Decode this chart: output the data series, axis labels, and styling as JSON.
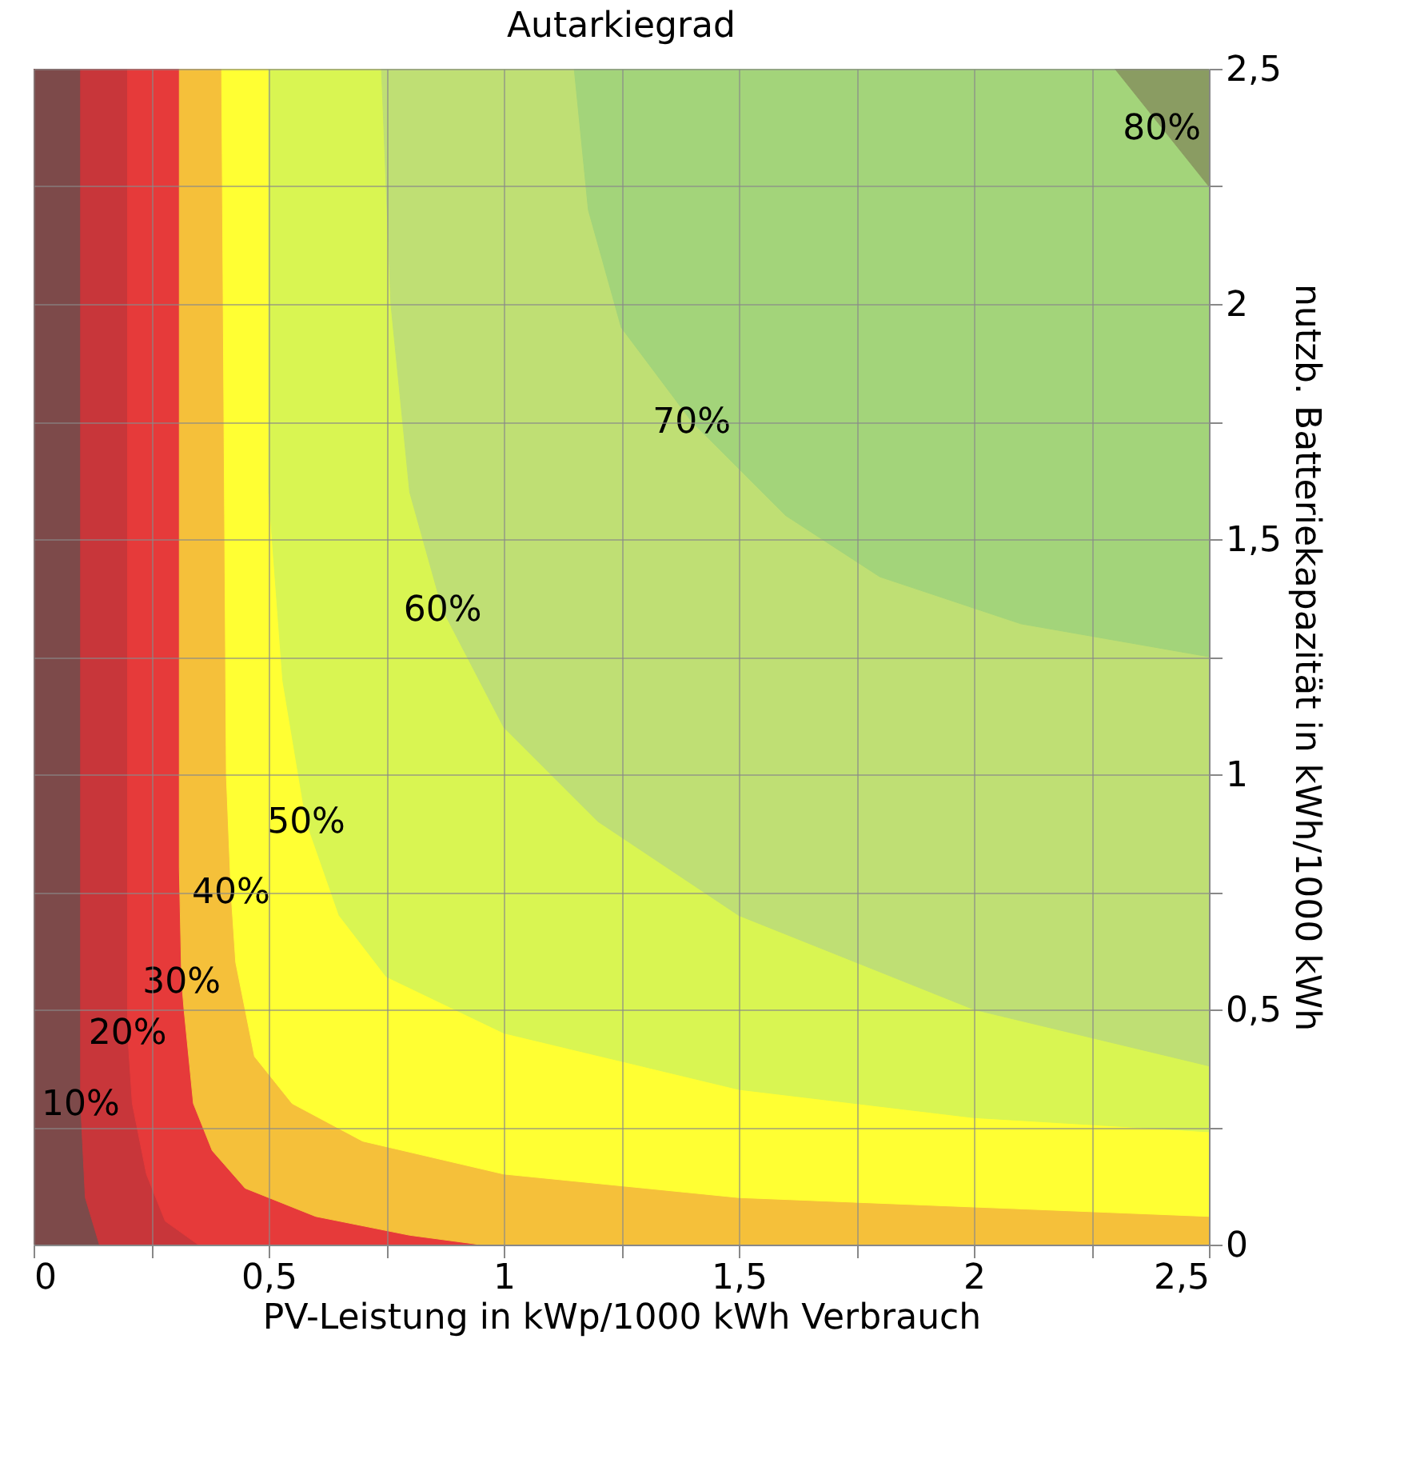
{
  "chart_data": {
    "type": "area",
    "title": "Autarkiegrad",
    "xlabel": "PV-Leistung in kWp/1000 kWh Verbrauch",
    "ylabel": "nutzb. Batteriekapazität in kWh/1000 kWh",
    "xlim": [
      0,
      2.5
    ],
    "ylim": [
      0,
      2.5
    ],
    "xticks": [
      {
        "value": 0,
        "label": "0"
      },
      {
        "value": 0.25,
        "label": null
      },
      {
        "value": 0.5,
        "label": "0,5"
      },
      {
        "value": 0.75,
        "label": null
      },
      {
        "value": 1,
        "label": "1"
      },
      {
        "value": 1.25,
        "label": null
      },
      {
        "value": 1.5,
        "label": "1,5"
      },
      {
        "value": 1.75,
        "label": null
      },
      {
        "value": 2,
        "label": "2"
      },
      {
        "value": 2.25,
        "label": null
      },
      {
        "value": 2.5,
        "label": "2,5"
      }
    ],
    "yticks": [
      {
        "value": 0,
        "label": "0"
      },
      {
        "value": 0.25,
        "label": null
      },
      {
        "value": 0.5,
        "label": "0,5"
      },
      {
        "value": 0.75,
        "label": null
      },
      {
        "value": 1,
        "label": "1"
      },
      {
        "value": 1.25,
        "label": null
      },
      {
        "value": 1.5,
        "label": "1,5"
      },
      {
        "value": 1.75,
        "label": null
      },
      {
        "value": 2,
        "label": "2"
      },
      {
        "value": 2.25,
        "label": null
      },
      {
        "value": 2.5,
        "label": "2,5"
      }
    ],
    "grid": true,
    "series": [
      {
        "color": "#7d4a4a",
        "x": [
          0,
          0,
          2.5,
          2.5
        ],
        "values": [
          2.5,
          0,
          0,
          2.5
        ]
      },
      {
        "color": "#c8363a",
        "x": [
          0.1,
          0.1,
          0.11,
          0.14,
          2.5,
          2.5
        ],
        "values": [
          2.5,
          0.3,
          0.1,
          0,
          0,
          2.5
        ]
      },
      {
        "color": "#e63a3a",
        "x": [
          0.2,
          0.2,
          0.2,
          0.21,
          0.24,
          0.28,
          0.35,
          2.5,
          2.5
        ],
        "values": [
          2.5,
          0.5,
          0.45,
          0.3,
          0.15,
          0.05,
          0,
          0,
          2.5
        ]
      },
      {
        "color": "#f5c03a",
        "x": [
          0.31,
          0.31,
          0.315,
          0.32,
          0.34,
          0.38,
          0.45,
          0.6,
          0.8,
          0.95,
          2.5,
          2.5
        ],
        "values": [
          2.5,
          0.8,
          0.56,
          0.5,
          0.3,
          0.2,
          0.12,
          0.06,
          0.02,
          0,
          0,
          2.5
        ]
      },
      {
        "color": "#ffff33",
        "x": [
          0.4,
          0.41,
          0.42,
          0.43,
          0.47,
          0.55,
          0.7,
          1,
          1.5,
          2,
          2.5,
          2.5
        ],
        "values": [
          2.5,
          1,
          0.75,
          0.6,
          0.4,
          0.3,
          0.22,
          0.15,
          0.1,
          0.08,
          0.06,
          2.5
        ]
      },
      {
        "color": "#d9f552",
        "x": [
          0.5,
          0.5,
          0.53,
          0.58,
          0.65,
          0.75,
          1,
          1.5,
          2,
          2.5,
          2.5
        ],
        "values": [
          2.5,
          1.6,
          1.2,
          0.9,
          0.7,
          0.57,
          0.45,
          0.33,
          0.27,
          0.24,
          2.5
        ]
      },
      {
        "color": "#bfdf74",
        "x": [
          0.74,
          0.76,
          0.8,
          0.87,
          1,
          1.2,
          1.5,
          2,
          2.5,
          2.5
        ],
        "values": [
          2.5,
          2,
          1.6,
          1.35,
          1.1,
          0.9,
          0.7,
          0.5,
          0.38,
          2.5
        ]
      },
      {
        "color": "#a3d47a",
        "x": [
          1.15,
          1.18,
          1.25,
          1.4,
          1.6,
          1.8,
          2.1,
          2.5,
          2.5
        ],
        "values": [
          2.5,
          2.2,
          1.95,
          1.75,
          1.55,
          1.42,
          1.32,
          1.25,
          2.5
        ]
      },
      {
        "color": "#8a9c62",
        "x": [
          2.3,
          2.4,
          2.5,
          2.5
        ],
        "values": [
          2.5,
          2.375,
          2.25,
          2.5
        ]
      }
    ],
    "annotations": [
      {
        "text": "10%",
        "x": 0.1,
        "y": 0.3
      },
      {
        "text": "20%",
        "x": 0.2,
        "y": 0.45
      },
      {
        "text": "30%",
        "x": 0.315,
        "y": 0.56
      },
      {
        "text": "40%",
        "x": 0.42,
        "y": 0.75
      },
      {
        "text": "50%",
        "x": 0.58,
        "y": 0.9
      },
      {
        "text": "60%",
        "x": 0.87,
        "y": 1.35
      },
      {
        "text": "70%",
        "x": 1.4,
        "y": 1.75
      },
      {
        "text": "80%",
        "x": 2.4,
        "y": 2.375
      }
    ]
  }
}
